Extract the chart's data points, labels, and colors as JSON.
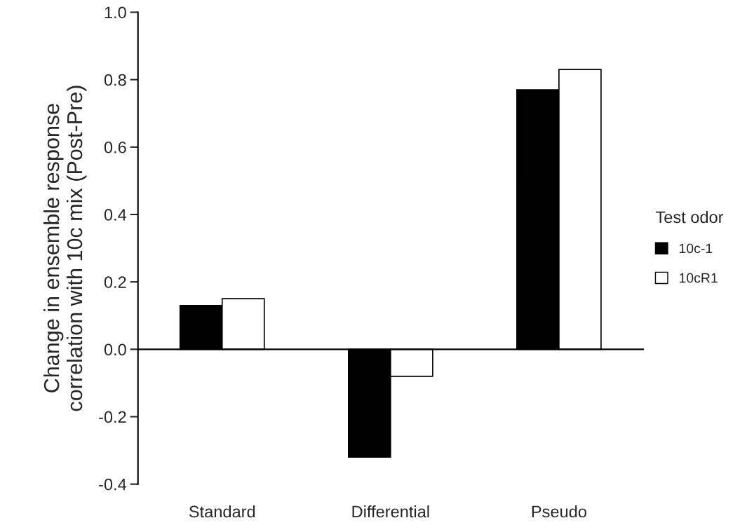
{
  "chart_data": {
    "type": "bar",
    "ylabel": "Change in ensemble response\ncorrelation with 10c mix (Post-Pre)",
    "categories": [
      "Standard",
      "Differential",
      "Pseudo"
    ],
    "series": [
      {
        "name": "10c-1",
        "color": "#000000",
        "values": [
          0.13,
          -0.32,
          0.77
        ]
      },
      {
        "name": "10cR1",
        "color": "#ffffff",
        "values": [
          0.15,
          -0.08,
          0.83
        ]
      }
    ],
    "ylim": [
      -0.4,
      1.0
    ],
    "yticks": [
      {
        "value": -0.4,
        "label": "-0.4"
      },
      {
        "value": -0.2,
        "label": "-0.2"
      },
      {
        "value": 0.0,
        "label": "0.0"
      },
      {
        "value": 0.2,
        "label": "0.2"
      },
      {
        "value": 0.4,
        "label": "0.4"
      },
      {
        "value": 0.6,
        "label": "0.6"
      },
      {
        "value": 0.8,
        "label": "0.8"
      },
      {
        "value": 1.0,
        "label": "1.0"
      }
    ],
    "legend": "right",
    "legend_title": "Test odor"
  }
}
